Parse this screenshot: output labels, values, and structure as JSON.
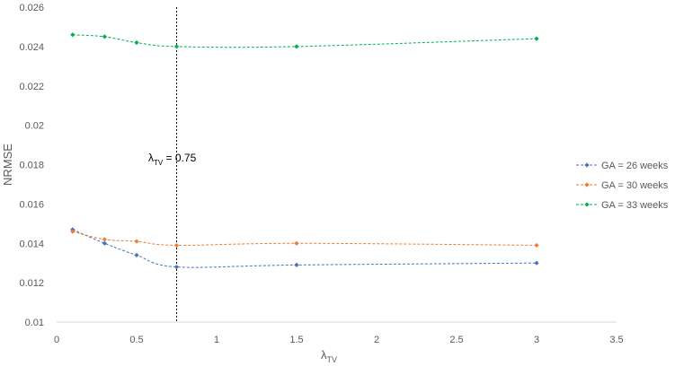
{
  "chart_data": {
    "type": "line",
    "xlabel": "λ",
    "xlabel_sub": "TV",
    "ylabel": "NRMSE",
    "xlim": [
      0,
      3.5
    ],
    "ylim": [
      0.01,
      0.026
    ],
    "x_ticks": [
      "0",
      "0.5",
      "1",
      "1.5",
      "2",
      "2.5",
      "3",
      "3.5"
    ],
    "y_ticks": [
      "0.01",
      "0.012",
      "0.014",
      "0.016",
      "0.018",
      "0.02",
      "0.022",
      "0.024",
      "0.026"
    ],
    "grid": false,
    "legend_position": "right",
    "series": [
      {
        "name": "GA = 26 weeks",
        "color": "#4472C4",
        "x": [
          0.1,
          0.3,
          0.5,
          0.75,
          1.5,
          3
        ],
        "y": [
          0.0147,
          0.014,
          0.0134,
          0.0128,
          0.0129,
          0.013
        ]
      },
      {
        "name": "GA = 30 weeks",
        "color": "#ED7D31",
        "x": [
          0.1,
          0.3,
          0.5,
          0.75,
          1.5,
          3
        ],
        "y": [
          0.0146,
          0.0142,
          0.0141,
          0.0139,
          0.014,
          0.0139
        ]
      },
      {
        "name": "GA = 33 weeks",
        "color": "#00B050",
        "x": [
          0.1,
          0.3,
          0.5,
          0.75,
          1.5,
          3
        ],
        "y": [
          0.0246,
          0.0245,
          0.0242,
          0.024,
          0.024,
          0.0244
        ]
      }
    ],
    "annotation": {
      "x": 0.75,
      "label_main": "λ",
      "label_sub": "TV",
      "label_rest": " = 0.75"
    }
  }
}
